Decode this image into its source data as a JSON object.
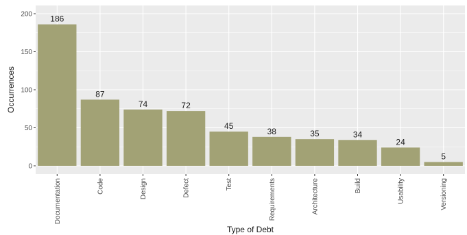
{
  "chart_data": {
    "type": "bar",
    "categories": [
      "Documentation",
      "Code",
      "Design",
      "Defect",
      "Test",
      "Requirements",
      "Architecture",
      "Build",
      "Usability",
      "Versioning"
    ],
    "values": [
      186,
      87,
      74,
      72,
      45,
      38,
      35,
      34,
      24,
      5
    ],
    "xlabel": "Type of Debt",
    "ylabel": "Occurrences",
    "ylim": [
      0,
      200
    ],
    "yticks": [
      0,
      50,
      100,
      150,
      200
    ],
    "grid": true,
    "bar_color": "#a2a275",
    "panel_color": "#ebebeb",
    "grid_color": "#ffffff"
  }
}
